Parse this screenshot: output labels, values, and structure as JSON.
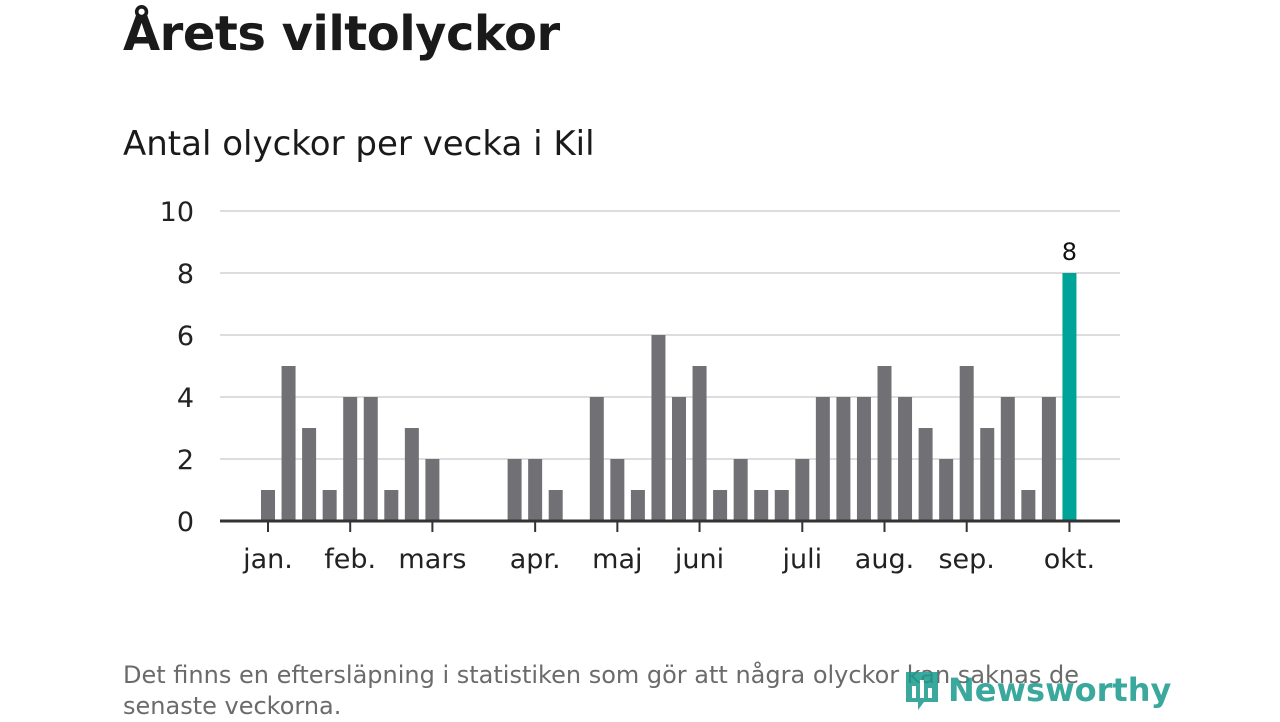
{
  "title": "Årets viltolyckor",
  "subtitle": "Antal olyckor per vecka i Kil",
  "note": "Det finns en eftersläpning i statistiken som gör att några olyckor kan saknas de senaste veckorna.",
  "logo": "Newsworthy",
  "colors": {
    "bar": "#717075",
    "highlight": "#00a398",
    "grid": "#dddddd",
    "axis": "#333333",
    "logo": "#1a9a8c"
  },
  "chart_data": {
    "type": "bar",
    "title": "Antal olyckor per vecka i Kil",
    "xlabel": "",
    "ylabel": "",
    "ylim": [
      0,
      10
    ],
    "yticks": [
      0,
      2,
      4,
      6,
      8,
      10
    ],
    "grid": true,
    "values": [
      1,
      5,
      3,
      1,
      4,
      4,
      1,
      3,
      2,
      0,
      0,
      0,
      2,
      2,
      1,
      0,
      4,
      2,
      1,
      6,
      4,
      5,
      1,
      2,
      1,
      1,
      2,
      4,
      4,
      4,
      5,
      4,
      3,
      2,
      5,
      3,
      4,
      1,
      4,
      8
    ],
    "highlight_index": 39,
    "highlight_label": "8",
    "month_ticks": [
      {
        "label": "jan.",
        "index": 0
      },
      {
        "label": "feb.",
        "index": 4
      },
      {
        "label": "mars",
        "index": 8
      },
      {
        "label": "apr.",
        "index": 13
      },
      {
        "label": "maj",
        "index": 17
      },
      {
        "label": "juni",
        "index": 21
      },
      {
        "label": "juli",
        "index": 26
      },
      {
        "label": "aug.",
        "index": 30
      },
      {
        "label": "sep.",
        "index": 34
      },
      {
        "label": "okt.",
        "index": 39
      }
    ]
  }
}
